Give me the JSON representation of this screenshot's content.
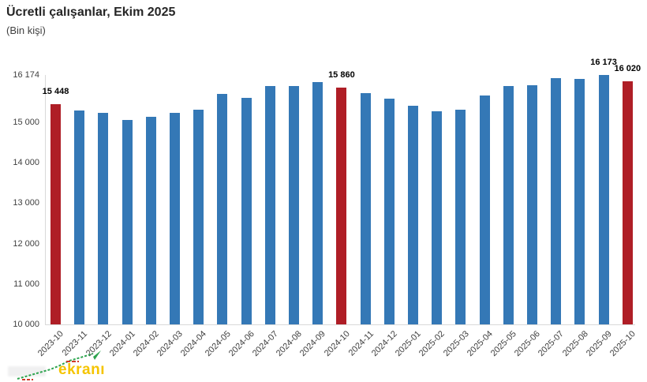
{
  "header": {
    "title": "Ücretli çalışanlar, Ekim 2025",
    "subtitle": "(Bin kişi)"
  },
  "watermark": {
    "text": "ekranı",
    "color": "#f5c400"
  },
  "chart_data": {
    "type": "bar",
    "title": "Ücretli çalışanlar, Ekim 2025",
    "unit_label": "(Bin kişi)",
    "categories": [
      "2023-10",
      "2023-11",
      "2023-12",
      "2024-01",
      "2024-02",
      "2024-03",
      "2024-04",
      "2024-05",
      "2024-06",
      "2024-07",
      "2024-08",
      "2024-09",
      "2024-10",
      "2024-11",
      "2024-12",
      "2025-01",
      "2025-02",
      "2025-03",
      "2025-04",
      "2025-05",
      "2025-06",
      "2025-07",
      "2025-08",
      "2025-09",
      "2025-10"
    ],
    "values": [
      15448,
      15300,
      15240,
      15070,
      15140,
      15235,
      15315,
      15705,
      15600,
      15905,
      15895,
      15990,
      15860,
      15730,
      15590,
      15410,
      15285,
      15305,
      15670,
      15900,
      15925,
      16105,
      16080,
      16173,
      16020
    ],
    "highlighted_categories": [
      "2023-10",
      "2024-10",
      "2025-10"
    ],
    "data_labels": [
      {
        "category": "2023-10",
        "text": "15 448"
      },
      {
        "category": "2024-10",
        "text": "15 860"
      },
      {
        "category": "2025-09",
        "text": "16 173"
      },
      {
        "category": "2025-10",
        "text": "16 020"
      }
    ],
    "y_axis": {
      "min": 10000,
      "max": 16174,
      "ticks": [
        {
          "label": "16 174",
          "value": 16174
        },
        {
          "label": "15 000",
          "value": 15000
        },
        {
          "label": "14 000",
          "value": 14000
        },
        {
          "label": "13 000",
          "value": 13000
        },
        {
          "label": "12 000",
          "value": 12000
        },
        {
          "label": "11 000",
          "value": 11000
        },
        {
          "label": "10 000",
          "value": 10000
        }
      ]
    },
    "colors": {
      "bar": "#3478b6",
      "highlight": "#af1e26"
    },
    "grid": false,
    "legend": false
  }
}
